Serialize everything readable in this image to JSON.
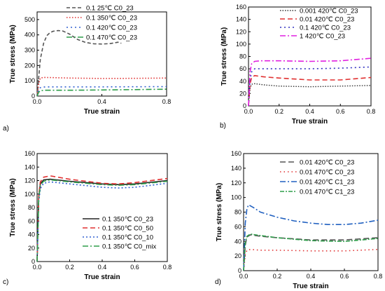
{
  "chart_data": [
    {
      "panel": "a)",
      "type": "line",
      "xlabel": "True strain",
      "ylabel": "True stress (MPa)",
      "xlim": [
        0,
        0.8
      ],
      "ylim": [
        0,
        550
      ],
      "xticks": [
        0.0,
        0.4,
        0.8
      ],
      "xtick_labels": [
        "0.0",
        "0.4",
        "0.8"
      ],
      "yticks": [
        0,
        100,
        200,
        300,
        400,
        500
      ],
      "ytick_labels": [
        "0",
        "100",
        "200",
        "300",
        "400",
        "500"
      ],
      "legend_position": "top-right",
      "series": [
        {
          "name": "0.1   25℃  C0_23",
          "color": "#555555",
          "dash": "5,3",
          "width": 1.6,
          "x": [
            0.0,
            0.02,
            0.04,
            0.06,
            0.08,
            0.1,
            0.13,
            0.16,
            0.2,
            0.25,
            0.3,
            0.35,
            0.4,
            0.45,
            0.5,
            0.52
          ],
          "y": [
            0,
            240,
            345,
            395,
            415,
            424,
            428,
            425,
            405,
            370,
            350,
            342,
            340,
            343,
            352,
            345
          ]
        },
        {
          "name": "0.1   350℃  C0_23",
          "color": "#e03030",
          "dash": "1.5,2.5",
          "width": 1.6,
          "x": [
            0.0,
            0.01,
            0.02,
            0.04,
            0.08,
            0.2,
            0.4,
            0.6,
            0.8
          ],
          "y": [
            0,
            80,
            118,
            122,
            121,
            118,
            115,
            116,
            118
          ]
        },
        {
          "name": "0.1   420℃  C0_23",
          "color": "#3060d0",
          "dash": "2,4",
          "width": 1.6,
          "x": [
            0.0,
            0.01,
            0.02,
            0.05,
            0.2,
            0.4,
            0.6,
            0.8
          ],
          "y": [
            0,
            40,
            55,
            60,
            60,
            60,
            61,
            62
          ]
        },
        {
          "name": "0.1   470℃  C0_23",
          "color": "#2e9d4a",
          "dash": "8,3,2,3",
          "width": 1.6,
          "x": [
            0.0,
            0.01,
            0.02,
            0.05,
            0.2,
            0.4,
            0.6,
            0.8
          ],
          "y": [
            0,
            25,
            35,
            38,
            38,
            40,
            42,
            45
          ]
        }
      ]
    },
    {
      "panel": "b)",
      "type": "line",
      "xlabel": "True strain",
      "ylabel": "True stress (MPa)",
      "xlim": [
        0,
        0.8
      ],
      "ylim": [
        0,
        160
      ],
      "xticks": [
        0.0,
        0.2,
        0.4,
        0.6,
        0.8
      ],
      "xtick_labels": [
        "0.0",
        "0.2",
        "0.4",
        "0.6",
        "0.8"
      ],
      "yticks": [
        0,
        20,
        40,
        60,
        80,
        100,
        120,
        140,
        160
      ],
      "ytick_labels": [
        "0",
        "20",
        "40",
        "60",
        "80",
        "100",
        "120",
        "140",
        "160"
      ],
      "legend_position": "top-right",
      "series": [
        {
          "name": "0.001  420℃  C0_23",
          "color": "#333333",
          "dash": "1.5,2",
          "width": 1.4,
          "x": [
            0.0,
            0.01,
            0.02,
            0.04,
            0.1,
            0.2,
            0.4,
            0.6,
            0.8
          ],
          "y": [
            0,
            28,
            35,
            36,
            34,
            32,
            31,
            32,
            33
          ]
        },
        {
          "name": "0.01   420℃  C0_23",
          "color": "#e03030",
          "dash": "7,4",
          "width": 1.6,
          "x": [
            0.0,
            0.01,
            0.02,
            0.04,
            0.1,
            0.2,
            0.4,
            0.6,
            0.8
          ],
          "y": [
            0,
            35,
            46,
            49,
            47,
            45,
            42,
            42,
            46
          ]
        },
        {
          "name": "0.1     420℃  C0_23",
          "color": "#3030c0",
          "dash": "2,4",
          "width": 1.6,
          "x": [
            0.0,
            0.01,
            0.02,
            0.04,
            0.1,
            0.2,
            0.4,
            0.6,
            0.8
          ],
          "y": [
            0,
            42,
            55,
            60,
            60,
            60,
            60,
            61,
            63
          ]
        },
        {
          "name": "1        420℃  C0_23",
          "color": "#e020e0",
          "dash": "8,3,2,3",
          "width": 1.6,
          "x": [
            0.0,
            0.01,
            0.02,
            0.04,
            0.08,
            0.2,
            0.4,
            0.6,
            0.8
          ],
          "y": [
            0,
            55,
            68,
            72,
            73,
            73,
            72,
            73,
            77
          ]
        }
      ]
    },
    {
      "panel": "c)",
      "type": "line",
      "xlabel": "True strain",
      "ylabel": "True stress (MPa)",
      "xlim": [
        0,
        0.8
      ],
      "ylim": [
        0,
        160
      ],
      "xticks": [
        0.0,
        0.2,
        0.4,
        0.6,
        0.8
      ],
      "xtick_labels": [
        "0.0",
        "0.2",
        "0.4",
        "0.6",
        "0.8"
      ],
      "yticks": [
        0,
        20,
        40,
        60,
        80,
        100,
        120,
        140,
        160
      ],
      "ytick_labels": [
        "0",
        "20",
        "40",
        "60",
        "80",
        "100",
        "120",
        "140",
        "160"
      ],
      "legend_position": "lower-right",
      "series": [
        {
          "name": "0.1   350℃  C0_23",
          "color": "#222222",
          "dash": "",
          "width": 1.6,
          "x": [
            0.0,
            0.01,
            0.02,
            0.04,
            0.08,
            0.2,
            0.4,
            0.5,
            0.6,
            0.8
          ],
          "y": [
            0,
            95,
            115,
            121,
            122,
            119,
            115,
            114,
            115,
            120
          ]
        },
        {
          "name": "0.1   350℃  C0_50",
          "color": "#e03030",
          "dash": "7,4",
          "width": 1.6,
          "x": [
            0.0,
            0.01,
            0.02,
            0.04,
            0.08,
            0.2,
            0.4,
            0.5,
            0.6,
            0.8
          ],
          "y": [
            0,
            98,
            118,
            125,
            127,
            122,
            116,
            115,
            117,
            123
          ]
        },
        {
          "name": "0.1   350℃  C0_10",
          "color": "#3060d0",
          "dash": "2,3",
          "width": 1.6,
          "x": [
            0.0,
            0.01,
            0.02,
            0.04,
            0.08,
            0.2,
            0.4,
            0.5,
            0.6,
            0.8
          ],
          "y": [
            0,
            88,
            108,
            116,
            118,
            115,
            110,
            109,
            110,
            116
          ]
        },
        {
          "name": "0.1   350℃  C0_mix",
          "color": "#2e9d4a",
          "dash": "8,3,2,3",
          "width": 1.6,
          "x": [
            0.0,
            0.01,
            0.02,
            0.04,
            0.08,
            0.2,
            0.4,
            0.5,
            0.6,
            0.8
          ],
          "y": [
            0,
            92,
            113,
            119,
            121,
            118,
            114,
            113,
            114,
            119
          ]
        }
      ]
    },
    {
      "panel": "d)",
      "type": "line",
      "xlabel": "True strain",
      "ylabel": "True stress (MPa)",
      "xlim": [
        0,
        0.8
      ],
      "ylim": [
        0,
        160
      ],
      "xticks": [
        0.0,
        0.2,
        0.4,
        0.6,
        0.8
      ],
      "xtick_labels": [
        "0.0",
        "0.2",
        "0.4",
        "0.6",
        "0.8"
      ],
      "yticks": [
        0,
        20,
        40,
        60,
        80,
        100,
        120,
        140,
        160
      ],
      "ytick_labels": [
        "0",
        "20",
        "40",
        "60",
        "80",
        "100",
        "120",
        "140",
        "160"
      ],
      "legend_position": "top-right",
      "series": [
        {
          "name": "0.01  420℃  C0_23",
          "color": "#555555",
          "dash": "8,4",
          "width": 1.6,
          "x": [
            0.0,
            0.01,
            0.02,
            0.04,
            0.1,
            0.2,
            0.4,
            0.6,
            0.8
          ],
          "y": [
            0,
            35,
            46,
            49,
            47,
            45,
            42,
            42,
            45
          ]
        },
        {
          "name": "0.01  470℃  C0_23",
          "color": "#e03030",
          "dash": "1.5,4",
          "width": 1.6,
          "x": [
            0.0,
            0.01,
            0.02,
            0.04,
            0.1,
            0.2,
            0.4,
            0.6,
            0.8
          ],
          "y": [
            0,
            22,
            28,
            29,
            28,
            28,
            27,
            27,
            29
          ]
        },
        {
          "name": "0.01  420℃  C1_23",
          "color": "#2060c0",
          "dash": "8,3,2,3",
          "width": 1.6,
          "x": [
            0.0,
            0.01,
            0.02,
            0.03,
            0.06,
            0.1,
            0.2,
            0.3,
            0.4,
            0.5,
            0.6,
            0.7,
            0.8
          ],
          "y": [
            0,
            65,
            85,
            90,
            86,
            80,
            73,
            68,
            65,
            63,
            63,
            65,
            69
          ]
        },
        {
          "name": "0.01  470℃  C1_23",
          "color": "#2e9d4a",
          "dash": "6,2,2,2",
          "width": 1.6,
          "x": [
            0.0,
            0.01,
            0.02,
            0.04,
            0.1,
            0.2,
            0.4,
            0.6,
            0.8
          ],
          "y": [
            0,
            38,
            47,
            50,
            48,
            45,
            41,
            40,
            44
          ]
        }
      ]
    }
  ]
}
